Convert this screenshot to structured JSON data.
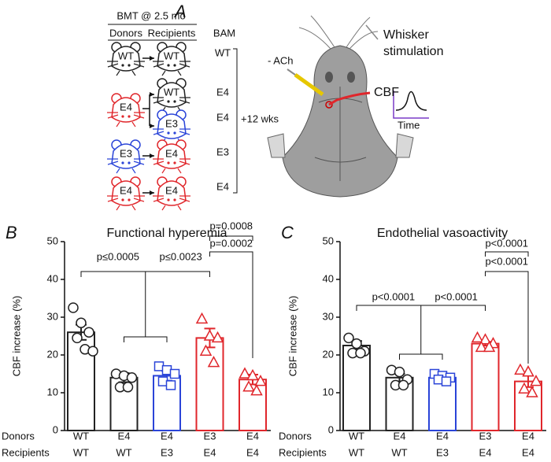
{
  "panel_a": {
    "label": "A",
    "header": "BMT @ 2.5 mo",
    "donors_title": "Donors",
    "recipients_title": "Recipients",
    "bam_title": "BAM",
    "donors": [
      {
        "label": "WT",
        "color": "#222222"
      },
      {
        "label": "E4",
        "color": "#e0262b"
      },
      {
        "label": "E3",
        "color": "#2a44d8"
      },
      {
        "label": "E4",
        "color": "#e0262b"
      }
    ],
    "recipients": [
      {
        "label": "WT",
        "color": "#222222"
      },
      {
        "label": "WT",
        "color": "#222222"
      },
      {
        "label": "E3",
        "color": "#2a44d8"
      },
      {
        "label": "E4",
        "color": "#e0262b"
      },
      {
        "label": "E4",
        "color": "#e0262b"
      }
    ],
    "bam": [
      "WT",
      "E4",
      "E4",
      "E3",
      "E4"
    ],
    "duration": "+12 wks",
    "ach": "- ACh",
    "whisker": [
      "Whisker",
      "stimulation"
    ],
    "cbf": "CBF",
    "time": "Time"
  },
  "chart_data": [
    {
      "type": "bar",
      "panel": "B",
      "title": "Functional hyperemia",
      "ylabel": "CBF increase (%)",
      "ylim": [
        0,
        50
      ],
      "yticks": [
        0,
        10,
        20,
        30,
        40,
        50
      ],
      "category_rows": [
        {
          "name": "Donors",
          "labels": [
            "WT",
            "E4",
            "E4",
            "E3",
            "E4"
          ]
        },
        {
          "name": "Recipients",
          "labels": [
            "WT",
            "WT",
            "E3",
            "E4",
            "E4"
          ]
        }
      ],
      "values": [
        26,
        14,
        14.5,
        24.5,
        13.5
      ],
      "errors": [
        2,
        1.2,
        1.3,
        2.5,
        1.3
      ],
      "points": [
        [
          32.5,
          28.5,
          26,
          24.5,
          21.5,
          21
        ],
        [
          15,
          14.5,
          14,
          11.5,
          11.5
        ],
        [
          17,
          16,
          15,
          13,
          12
        ],
        [
          29.5,
          25,
          24.5,
          21,
          18
        ],
        [
          15,
          14.5,
          13,
          11.5,
          10.5
        ]
      ],
      "colors": [
        "#222222",
        "#222222",
        "#2a44d8",
        "#e0262b",
        "#e0262b"
      ],
      "markers": [
        "circle",
        "circle",
        "square",
        "triangle",
        "triangle"
      ],
      "annotations": [
        "p≤0.0005",
        "p≤0.0023",
        "p=0.0008",
        "p=0.0002"
      ]
    },
    {
      "type": "bar",
      "panel": "C",
      "title": "Endothelial vasoactivity",
      "ylabel": "CBF increase (%)",
      "ylim": [
        0,
        50
      ],
      "yticks": [
        0,
        10,
        20,
        30,
        40,
        50
      ],
      "category_rows": [
        {
          "name": "Donors",
          "labels": [
            "WT",
            "E4",
            "E4",
            "E3",
            "E4"
          ]
        },
        {
          "name": "Recipients",
          "labels": [
            "WT",
            "WT",
            "E3",
            "E4",
            "E4"
          ]
        }
      ],
      "values": [
        22.5,
        14,
        14,
        23,
        13
      ],
      "errors": [
        1.2,
        1,
        0.5,
        0.5,
        1.5
      ],
      "points": [
        [
          24.5,
          23,
          21,
          20.5,
          20.5
        ],
        [
          16,
          15.5,
          13.5,
          12,
          12
        ],
        [
          15,
          14.5,
          14,
          13.5,
          13
        ],
        [
          24.5,
          24,
          23,
          22,
          22
        ],
        [
          16,
          15.5,
          13,
          11,
          10
        ]
      ],
      "colors": [
        "#222222",
        "#222222",
        "#2a44d8",
        "#e0262b",
        "#e0262b"
      ],
      "markers": [
        "circle",
        "circle",
        "square",
        "triangle",
        "triangle"
      ],
      "annotations": [
        "p<0.0001",
        "p<0.0001",
        "p<0.0001",
        "p<0.0001"
      ]
    }
  ]
}
